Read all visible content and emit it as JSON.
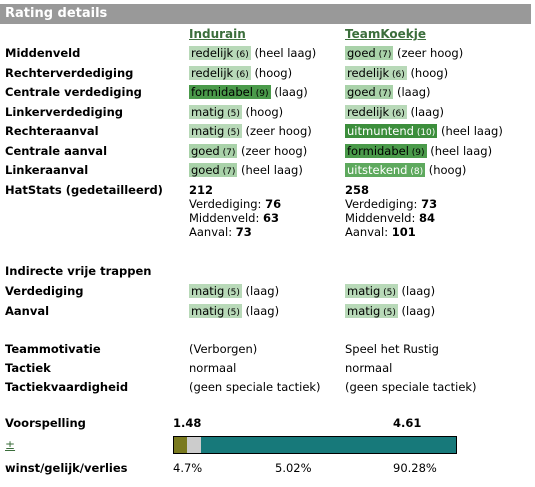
{
  "title": "Rating details",
  "teams": [
    "Indurain",
    "TeamKoekje"
  ],
  "ratings": [
    {
      "label": "Middenveld",
      "home": {
        "word": "redelijk",
        "level": 6,
        "sub": "(heel laag)"
      },
      "away": {
        "word": "goed",
        "level": 7,
        "sub": "(zeer hoog)"
      }
    },
    {
      "label": "Rechterverdediging",
      "home": {
        "word": "redelijk",
        "level": 6,
        "sub": "(hoog)"
      },
      "away": {
        "word": "redelijk",
        "level": 6,
        "sub": "(hoog)"
      }
    },
    {
      "label": "Centrale verdediging",
      "home": {
        "word": "formidabel",
        "level": 9,
        "sub": "(laag)"
      },
      "away": {
        "word": "goed",
        "level": 7,
        "sub": "(laag)"
      }
    },
    {
      "label": "Linkerverdediging",
      "home": {
        "word": "matig",
        "level": 5,
        "sub": "(hoog)"
      },
      "away": {
        "word": "redelijk",
        "level": 6,
        "sub": "(laag)"
      }
    },
    {
      "label": "Rechteraanval",
      "home": {
        "word": "matig",
        "level": 5,
        "sub": "(zeer hoog)"
      },
      "away": {
        "word": "uitmuntend",
        "level": 10,
        "sub": "(heel laag)"
      }
    },
    {
      "label": "Centrale aanval",
      "home": {
        "word": "goed",
        "level": 7,
        "sub": "(zeer hoog)"
      },
      "away": {
        "word": "formidabel",
        "level": 9,
        "sub": "(heel laag)"
      }
    },
    {
      "label": "Linkeraanval",
      "home": {
        "word": "goed",
        "level": 7,
        "sub": "(heel laag)"
      },
      "away": {
        "word": "uitstekend",
        "level": 8,
        "sub": "(hoog)"
      }
    }
  ],
  "hatstats": {
    "label": "HatStats (gedetailleerd)",
    "home": {
      "total": "212",
      "def_label": "Verdediging:",
      "def": "76",
      "mid_label": "Middenveld:",
      "mid": "63",
      "att_label": "Aanval:",
      "att": "73"
    },
    "away": {
      "total": "258",
      "def_label": "Verdediging:",
      "def": "73",
      "mid_label": "Middenveld:",
      "mid": "84",
      "att_label": "Aanval:",
      "att": "101"
    }
  },
  "freekicks": {
    "label": "Indirecte vrije trappen",
    "rows": [
      {
        "label": "Verdediging",
        "home": {
          "word": "matig",
          "level": 5,
          "sub": "(laag)"
        },
        "away": {
          "word": "matig",
          "level": 5,
          "sub": "(laag)"
        }
      },
      {
        "label": "Aanval",
        "home": {
          "word": "matig",
          "level": 5,
          "sub": "(laag)"
        },
        "away": {
          "word": "matig",
          "level": 5,
          "sub": "(laag)"
        }
      }
    ]
  },
  "info": [
    {
      "label": "Teammotivatie",
      "home": "(Verborgen)",
      "away": "Speel het Rustig"
    },
    {
      "label": "Tactiek",
      "home": "normaal",
      "away": "normaal"
    },
    {
      "label": "Tactiekvaardigheid",
      "home": "(geen speciale tactiek)",
      "away": "(geen speciale tactiek)"
    }
  ],
  "prediction": {
    "label": "Voorspelling",
    "home": "1.48",
    "away": "4.61",
    "toggle": "±",
    "wdl_label": "winst/gelijk/verlies",
    "win": "4.7%",
    "draw": "5.02%",
    "loss": "90.28%",
    "bar": {
      "win": 4.7,
      "draw": 5.02,
      "loss": 90.28
    },
    "colors": {
      "win": "#7a7a1f",
      "draw": "#cccccc",
      "loss": "#17797a"
    }
  }
}
